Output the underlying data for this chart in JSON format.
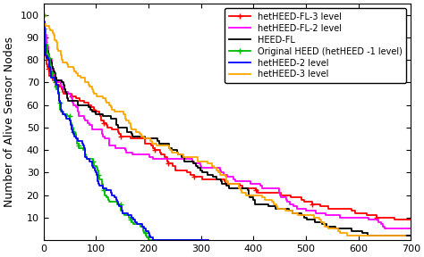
{
  "ylabel": "Number of Alive Sensor Nodes",
  "ylim": [
    0,
    105
  ],
  "xlim": [
    0,
    700
  ],
  "yticks": [
    10,
    20,
    30,
    40,
    50,
    60,
    70,
    80,
    90,
    100
  ],
  "curves": [
    {
      "label": "hetHEED-FL-3 level",
      "color": "#ff0000",
      "marker": "+",
      "x_start": 0,
      "x_end": 680,
      "y_start": 100,
      "y_end": 9,
      "shape_power": 2.8,
      "seed": 101
    },
    {
      "label": "hetHEED-FL-2 level",
      "color": "#ff00ff",
      "marker": null,
      "x_start": 0,
      "x_end": 660,
      "y_start": 100,
      "y_end": 5,
      "shape_power": 2.8,
      "seed": 202
    },
    {
      "label": "HEED-FL",
      "color": "#000000",
      "marker": null,
      "x_start": 0,
      "x_end": 620,
      "y_start": 100,
      "y_end": 2,
      "shape_power": 2.2,
      "seed": 303
    },
    {
      "label": "Original HEED (hetHEED -1 level)",
      "color": "#00bb00",
      "marker": "+",
      "x_start": 0,
      "x_end": 200,
      "y_start": 100,
      "y_end": 0,
      "shape_power": 1.8,
      "seed": 404
    },
    {
      "label": "hetHEED-2 level",
      "color": "#0000ff",
      "marker": null,
      "x_start": 0,
      "x_end": 215,
      "y_start": 100,
      "y_end": 0,
      "shape_power": 1.8,
      "seed": 505
    },
    {
      "label": "hetHEED-3 level",
      "color": "#ffa500",
      "marker": null,
      "x_start": 0,
      "x_end": 590,
      "y_start": 100,
      "y_end": 2,
      "shape_power": 2.0,
      "seed": 606
    }
  ],
  "background_color": "#ffffff",
  "legend_fontsize": 7,
  "tick_fontsize": 8,
  "label_fontsize": 9,
  "linewidth": 1.3
}
